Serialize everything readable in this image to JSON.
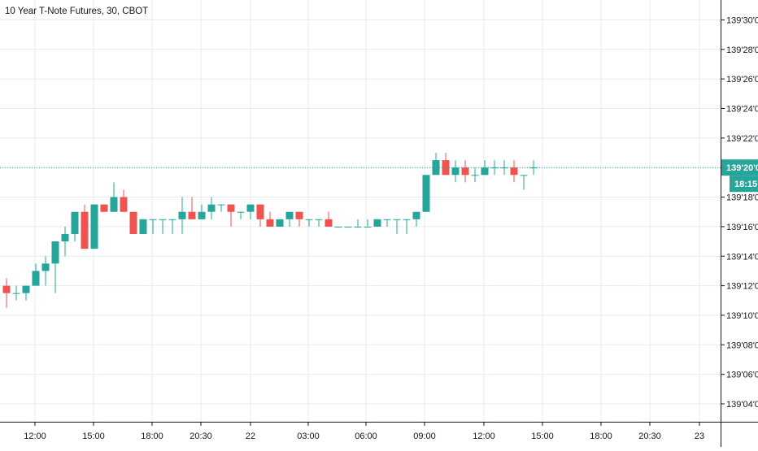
{
  "chart_title": "10 Year T-Note Futures, 30, CBOT",
  "colors": {
    "up": "#26a69a",
    "down": "#ef5350",
    "grid": "#e6ebf1",
    "price_line": "#26a69a",
    "text": "#131722"
  },
  "chart_data": {
    "type": "candlestick",
    "title": "10 Year T-Note Futures, 30, CBOT",
    "y_ticks": [
      "139'04'0",
      "139'06'0",
      "139'08'0",
      "139'10'0",
      "139'12'0",
      "139'14'0",
      "139'16'0",
      "139'18'0",
      "139'20'0",
      "139'22'0",
      "139'24'0",
      "139'26'0",
      "139'28'0",
      "139'30'0"
    ],
    "y_range_ticks": [
      4,
      30.5
    ],
    "x_ticks": [
      "12:00",
      "15:00",
      "18:00",
      "20:30",
      "22",
      "03:00",
      "06:00",
      "09:00",
      "12:00",
      "15:00",
      "18:00",
      "20:30",
      "23"
    ],
    "grid": true,
    "last_price_label": "139'20'0",
    "countdown_label": "18:15",
    "last_price": 20,
    "candles_ohlc": [
      [
        12,
        12.5,
        10.5,
        11.5
      ],
      [
        11.5,
        12,
        11,
        11.5
      ],
      [
        11.5,
        12,
        11,
        12
      ],
      [
        12,
        13.5,
        12,
        13
      ],
      [
        13,
        14,
        12,
        13.5
      ],
      [
        13.5,
        15,
        11.5,
        15
      ],
      [
        15,
        16,
        14,
        15.5
      ],
      [
        15.5,
        17,
        15,
        17
      ],
      [
        17,
        17.5,
        14.5,
        14.5
      ],
      [
        14.5,
        17.5,
        14.5,
        17.5
      ],
      [
        17.5,
        17.5,
        17,
        17
      ],
      [
        17,
        19,
        17,
        18
      ],
      [
        18,
        18.5,
        17,
        17
      ],
      [
        17,
        17,
        15.5,
        15.5
      ],
      [
        15.5,
        16.5,
        15.5,
        16.5
      ],
      [
        16.5,
        16.5,
        15.5,
        16.5
      ],
      [
        16.5,
        16.5,
        15.5,
        16.5
      ],
      [
        16.5,
        16.5,
        15.5,
        16.5
      ],
      [
        16.5,
        18,
        15.5,
        17
      ],
      [
        17,
        18,
        16.5,
        16.5
      ],
      [
        16.5,
        17.5,
        16.5,
        17
      ],
      [
        17,
        18,
        16.5,
        17.5
      ],
      [
        17.5,
        17.5,
        17,
        17.5
      ],
      [
        17.5,
        17.5,
        16,
        17
      ],
      [
        17,
        17,
        16.5,
        17
      ],
      [
        17,
        17.5,
        16.5,
        17.5
      ],
      [
        17.5,
        17.5,
        16,
        16.5
      ],
      [
        16.5,
        17,
        16,
        16
      ],
      [
        16,
        16.5,
        16,
        16.5
      ],
      [
        16.5,
        17,
        16,
        17
      ],
      [
        17,
        17,
        16,
        16.5
      ],
      [
        16.5,
        16.5,
        16,
        16.5
      ],
      [
        16.5,
        16.5,
        16,
        16.5
      ],
      [
        16.5,
        17,
        16,
        16
      ],
      [
        16,
        16,
        16,
        16
      ],
      [
        16,
        16,
        16,
        16
      ],
      [
        16,
        16.5,
        16,
        16
      ],
      [
        16,
        16.5,
        16,
        16
      ],
      [
        16,
        16.5,
        16,
        16.5
      ],
      [
        16.5,
        16.5,
        16,
        16.5
      ],
      [
        16.5,
        16.5,
        15.5,
        16.5
      ],
      [
        16.5,
        16.5,
        15.5,
        16.5
      ],
      [
        16.5,
        17,
        16,
        17
      ],
      [
        17,
        19.5,
        17,
        19.5
      ],
      [
        19.5,
        21,
        19.5,
        20.5
      ],
      [
        20.5,
        21,
        19.5,
        19.5
      ],
      [
        19.5,
        20.5,
        19,
        20
      ],
      [
        20,
        20.5,
        19,
        19.5
      ],
      [
        19.5,
        20,
        19,
        19.5
      ],
      [
        19.5,
        20.5,
        19.5,
        20
      ],
      [
        20,
        20.5,
        19.5,
        20
      ],
      [
        20,
        20.5,
        19.5,
        20
      ],
      [
        20,
        20.5,
        19,
        19.5
      ],
      [
        19.5,
        19.5,
        18.5,
        19.5
      ],
      [
        20,
        20.5,
        19.5,
        20
      ]
    ]
  }
}
